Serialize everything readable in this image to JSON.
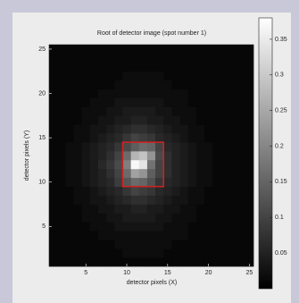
{
  "chart_data": {
    "type": "heatmap",
    "title": "Root of detector image (spot number 1)",
    "x_label": "detector pixels (X)",
    "y_label": "detector pixels (Y)",
    "x": [
      1,
      2,
      3,
      4,
      5,
      6,
      7,
      8,
      9,
      10,
      11,
      12,
      13,
      14,
      15,
      16,
      17,
      18,
      19,
      20,
      21,
      22,
      23,
      24,
      25
    ],
    "y": [
      1,
      2,
      3,
      4,
      5,
      6,
      7,
      8,
      9,
      10,
      11,
      12,
      13,
      14,
      15,
      16,
      17,
      18,
      19,
      20,
      21,
      22,
      23,
      24,
      25
    ],
    "z": [
      [
        0.01,
        0.01,
        0.01,
        0.01,
        0.01,
        0.01,
        0.01,
        0.01,
        0.01,
        0.01,
        0.01,
        0.01,
        0.01,
        0.01,
        0.01,
        0.01,
        0.01,
        0.01,
        0.01,
        0.01,
        0.01,
        0.01,
        0.01,
        0.01,
        0.01
      ],
      [
        0.01,
        0.01,
        0.01,
        0.01,
        0.01,
        0.01,
        0.01,
        0.01,
        0.01,
        0.02,
        0.02,
        0.02,
        0.02,
        0.02,
        0.01,
        0.01,
        0.01,
        0.01,
        0.01,
        0.01,
        0.01,
        0.01,
        0.01,
        0.01,
        0.01
      ],
      [
        0.01,
        0.01,
        0.01,
        0.01,
        0.01,
        0.01,
        0.01,
        0.01,
        0.02,
        0.02,
        0.02,
        0.02,
        0.02,
        0.02,
        0.02,
        0.01,
        0.01,
        0.01,
        0.01,
        0.01,
        0.01,
        0.01,
        0.01,
        0.01,
        0.01
      ],
      [
        0.01,
        0.01,
        0.01,
        0.01,
        0.01,
        0.01,
        0.02,
        0.02,
        0.02,
        0.02,
        0.02,
        0.02,
        0.02,
        0.02,
        0.02,
        0.02,
        0.02,
        0.01,
        0.01,
        0.01,
        0.01,
        0.01,
        0.01,
        0.01,
        0.01
      ],
      [
        0.01,
        0.01,
        0.01,
        0.01,
        0.01,
        0.02,
        0.02,
        0.02,
        0.03,
        0.03,
        0.03,
        0.03,
        0.03,
        0.03,
        0.02,
        0.02,
        0.02,
        0.01,
        0.01,
        0.01,
        0.01,
        0.01,
        0.01,
        0.01,
        0.01
      ],
      [
        0.01,
        0.01,
        0.01,
        0.01,
        0.02,
        0.02,
        0.02,
        0.03,
        0.03,
        0.04,
        0.04,
        0.04,
        0.04,
        0.03,
        0.03,
        0.02,
        0.02,
        0.02,
        0.01,
        0.01,
        0.01,
        0.01,
        0.01,
        0.01,
        0.01
      ],
      [
        0.01,
        0.01,
        0.01,
        0.01,
        0.02,
        0.02,
        0.03,
        0.03,
        0.04,
        0.04,
        0.05,
        0.05,
        0.04,
        0.04,
        0.03,
        0.03,
        0.02,
        0.02,
        0.01,
        0.01,
        0.01,
        0.01,
        0.01,
        0.01,
        0.01
      ],
      [
        0.01,
        0.01,
        0.01,
        0.02,
        0.02,
        0.03,
        0.03,
        0.04,
        0.05,
        0.06,
        0.07,
        0.07,
        0.06,
        0.05,
        0.04,
        0.03,
        0.03,
        0.02,
        0.02,
        0.01,
        0.01,
        0.01,
        0.01,
        0.01,
        0.01
      ],
      [
        0.01,
        0.01,
        0.01,
        0.02,
        0.02,
        0.03,
        0.04,
        0.05,
        0.06,
        0.08,
        0.1,
        0.09,
        0.08,
        0.06,
        0.05,
        0.04,
        0.03,
        0.02,
        0.02,
        0.01,
        0.01,
        0.01,
        0.01,
        0.01,
        0.01
      ],
      [
        0.01,
        0.01,
        0.02,
        0.02,
        0.03,
        0.04,
        0.05,
        0.06,
        0.09,
        0.13,
        0.16,
        0.15,
        0.12,
        0.08,
        0.06,
        0.05,
        0.04,
        0.03,
        0.02,
        0.02,
        0.01,
        0.01,
        0.01,
        0.01,
        0.01
      ],
      [
        0.01,
        0.01,
        0.02,
        0.02,
        0.03,
        0.04,
        0.05,
        0.07,
        0.1,
        0.16,
        0.24,
        0.22,
        0.14,
        0.1,
        0.07,
        0.05,
        0.04,
        0.03,
        0.02,
        0.02,
        0.01,
        0.01,
        0.01,
        0.01,
        0.01
      ],
      [
        0.01,
        0.01,
        0.02,
        0.02,
        0.03,
        0.04,
        0.06,
        0.08,
        0.11,
        0.19,
        0.37,
        0.34,
        0.17,
        0.1,
        0.07,
        0.05,
        0.04,
        0.03,
        0.02,
        0.02,
        0.01,
        0.01,
        0.01,
        0.01,
        0.01
      ],
      [
        0.01,
        0.01,
        0.02,
        0.02,
        0.03,
        0.04,
        0.05,
        0.07,
        0.1,
        0.16,
        0.27,
        0.29,
        0.22,
        0.11,
        0.07,
        0.05,
        0.04,
        0.03,
        0.02,
        0.02,
        0.01,
        0.01,
        0.01,
        0.01,
        0.01
      ],
      [
        0.01,
        0.01,
        0.02,
        0.02,
        0.03,
        0.04,
        0.05,
        0.06,
        0.08,
        0.11,
        0.14,
        0.16,
        0.15,
        0.1,
        0.06,
        0.05,
        0.04,
        0.03,
        0.02,
        0.02,
        0.01,
        0.01,
        0.01,
        0.01,
        0.01
      ],
      [
        0.01,
        0.01,
        0.01,
        0.02,
        0.02,
        0.03,
        0.04,
        0.05,
        0.06,
        0.08,
        0.1,
        0.09,
        0.08,
        0.06,
        0.05,
        0.04,
        0.03,
        0.02,
        0.02,
        0.01,
        0.01,
        0.01,
        0.01,
        0.01,
        0.01
      ],
      [
        0.01,
        0.01,
        0.01,
        0.02,
        0.02,
        0.03,
        0.03,
        0.04,
        0.05,
        0.06,
        0.07,
        0.07,
        0.06,
        0.05,
        0.04,
        0.03,
        0.03,
        0.02,
        0.02,
        0.01,
        0.01,
        0.01,
        0.01,
        0.01,
        0.01
      ],
      [
        0.01,
        0.01,
        0.01,
        0.01,
        0.02,
        0.02,
        0.03,
        0.03,
        0.04,
        0.04,
        0.05,
        0.05,
        0.04,
        0.04,
        0.03,
        0.03,
        0.02,
        0.02,
        0.01,
        0.01,
        0.01,
        0.01,
        0.01,
        0.01,
        0.01
      ],
      [
        0.01,
        0.01,
        0.01,
        0.01,
        0.02,
        0.02,
        0.02,
        0.03,
        0.03,
        0.04,
        0.04,
        0.04,
        0.04,
        0.03,
        0.03,
        0.02,
        0.02,
        0.02,
        0.01,
        0.01,
        0.01,
        0.01,
        0.01,
        0.01,
        0.01
      ],
      [
        0.01,
        0.01,
        0.01,
        0.01,
        0.01,
        0.02,
        0.02,
        0.02,
        0.03,
        0.03,
        0.03,
        0.03,
        0.03,
        0.03,
        0.02,
        0.02,
        0.02,
        0.01,
        0.01,
        0.01,
        0.01,
        0.01,
        0.01,
        0.01,
        0.01
      ],
      [
        0.01,
        0.01,
        0.01,
        0.01,
        0.01,
        0.01,
        0.02,
        0.02,
        0.02,
        0.02,
        0.02,
        0.02,
        0.02,
        0.02,
        0.02,
        0.02,
        0.02,
        0.01,
        0.01,
        0.01,
        0.01,
        0.01,
        0.01,
        0.01,
        0.01
      ],
      [
        0.01,
        0.01,
        0.01,
        0.01,
        0.01,
        0.01,
        0.01,
        0.01,
        0.02,
        0.02,
        0.02,
        0.02,
        0.02,
        0.02,
        0.02,
        0.01,
        0.01,
        0.01,
        0.01,
        0.01,
        0.01,
        0.01,
        0.01,
        0.01,
        0.01
      ],
      [
        0.01,
        0.01,
        0.01,
        0.01,
        0.01,
        0.01,
        0.01,
        0.01,
        0.01,
        0.02,
        0.02,
        0.02,
        0.02,
        0.02,
        0.01,
        0.01,
        0.01,
        0.01,
        0.01,
        0.01,
        0.01,
        0.01,
        0.01,
        0.01,
        0.01
      ],
      [
        0.01,
        0.01,
        0.01,
        0.01,
        0.01,
        0.01,
        0.01,
        0.01,
        0.01,
        0.01,
        0.01,
        0.01,
        0.01,
        0.01,
        0.01,
        0.01,
        0.01,
        0.01,
        0.01,
        0.01,
        0.01,
        0.01,
        0.01,
        0.01,
        0.01
      ],
      [
        0.01,
        0.01,
        0.01,
        0.01,
        0.01,
        0.01,
        0.01,
        0.01,
        0.01,
        0.01,
        0.01,
        0.01,
        0.01,
        0.01,
        0.01,
        0.01,
        0.01,
        0.01,
        0.01,
        0.01,
        0.01,
        0.01,
        0.01,
        0.01,
        0.01
      ],
      [
        0.01,
        0.01,
        0.01,
        0.01,
        0.01,
        0.01,
        0.01,
        0.01,
        0.01,
        0.01,
        0.01,
        0.01,
        0.01,
        0.01,
        0.01,
        0.01,
        0.01,
        0.01,
        0.01,
        0.01,
        0.01,
        0.01,
        0.01,
        0.01,
        0.01
      ]
    ],
    "xlim": [
      0.5,
      25.5
    ],
    "ylim": [
      0.5,
      25.5
    ],
    "xticks": [
      5,
      10,
      15,
      20,
      25
    ],
    "yticks": [
      5,
      10,
      15,
      20,
      25
    ],
    "clim": [
      0,
      0.38
    ],
    "cticks": [
      0.05,
      0.1,
      0.15,
      0.2,
      0.25,
      0.3,
      0.35
    ],
    "colormap": "gray",
    "box": {
      "x": [
        9.5,
        14.5
      ],
      "y": [
        9.5,
        14.5
      ],
      "color": "#d42020"
    }
  }
}
